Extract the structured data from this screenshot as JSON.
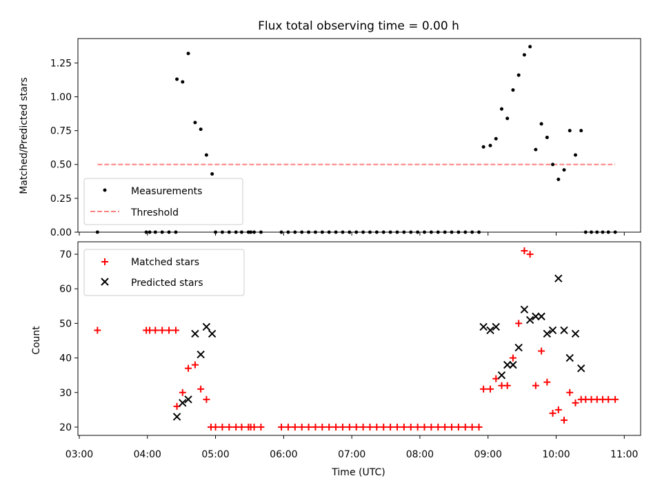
{
  "chart_data": [
    {
      "type": "scatter",
      "title": "Flux total observing time = 0.00 h",
      "xlabel": "",
      "ylabel": "Matched/Predicted stars",
      "ylim": [
        0,
        1.43
      ],
      "yticks": [
        "0.00",
        "0.25",
        "0.50",
        "0.75",
        "1.00",
        "1.25"
      ],
      "ytick_values": [
        0,
        0.25,
        0.5,
        0.75,
        1.0,
        1.25
      ],
      "xlim_hours": [
        2.98,
        11.24
      ],
      "legend": {
        "placement": "lower-left",
        "entries": [
          "Measurements",
          "Threshold"
        ]
      },
      "threshold": {
        "name": "Threshold",
        "value": 0.5,
        "x_start": "03:16",
        "x_end": "10:52",
        "color": "#ff7f7f"
      },
      "series": [
        {
          "name": "Measurements",
          "color": "#000000",
          "points": [
            [
              "03:16",
              0.0
            ],
            [
              "03:59",
              0.0
            ],
            [
              "04:02",
              0.0
            ],
            [
              "04:07",
              0.0
            ],
            [
              "04:13",
              0.0
            ],
            [
              "04:19",
              0.0
            ],
            [
              "04:25",
              0.0
            ],
            [
              "04:26",
              1.13
            ],
            [
              "04:31",
              1.11
            ],
            [
              "04:36",
              1.32
            ],
            [
              "04:42",
              0.81
            ],
            [
              "04:47",
              0.76
            ],
            [
              "04:52",
              0.57
            ],
            [
              "04:57",
              0.43
            ],
            [
              "05:00",
              0.0
            ],
            [
              "05:06",
              0.0
            ],
            [
              "05:12",
              0.0
            ],
            [
              "05:18",
              0.0
            ],
            [
              "05:23",
              0.0
            ],
            [
              "05:29",
              0.0
            ],
            [
              "05:31",
              0.0
            ],
            [
              "05:34",
              0.0
            ],
            [
              "05:40",
              0.0
            ],
            [
              "05:58",
              0.0
            ],
            [
              "06:04",
              0.0
            ],
            [
              "06:10",
              0.0
            ],
            [
              "06:16",
              0.0
            ],
            [
              "06:22",
              0.0
            ],
            [
              "06:28",
              0.0
            ],
            [
              "06:34",
              0.0
            ],
            [
              "06:40",
              0.0
            ],
            [
              "06:46",
              0.0
            ],
            [
              "06:52",
              0.0
            ],
            [
              "06:58",
              0.0
            ],
            [
              "07:04",
              0.0
            ],
            [
              "07:10",
              0.0
            ],
            [
              "07:16",
              0.0
            ],
            [
              "07:22",
              0.0
            ],
            [
              "07:28",
              0.0
            ],
            [
              "07:34",
              0.0
            ],
            [
              "07:40",
              0.0
            ],
            [
              "07:46",
              0.0
            ],
            [
              "07:52",
              0.0
            ],
            [
              "07:58",
              0.0
            ],
            [
              "08:04",
              0.0
            ],
            [
              "08:10",
              0.0
            ],
            [
              "08:16",
              0.0
            ],
            [
              "08:22",
              0.0
            ],
            [
              "08:28",
              0.0
            ],
            [
              "08:34",
              0.0
            ],
            [
              "08:40",
              0.0
            ],
            [
              "08:46",
              0.0
            ],
            [
              "08:52",
              0.0
            ],
            [
              "08:56",
              0.63
            ],
            [
              "09:02",
              0.64
            ],
            [
              "09:07",
              0.69
            ],
            [
              "09:12",
              0.91
            ],
            [
              "09:17",
              0.84
            ],
            [
              "09:22",
              1.05
            ],
            [
              "09:27",
              1.16
            ],
            [
              "09:32",
              1.31
            ],
            [
              "09:37",
              1.37
            ],
            [
              "09:42",
              0.61
            ],
            [
              "09:47",
              0.8
            ],
            [
              "09:52",
              0.7
            ],
            [
              "09:57",
              0.5
            ],
            [
              "10:02",
              0.39
            ],
            [
              "10:07",
              0.46
            ],
            [
              "10:12",
              0.75
            ],
            [
              "10:17",
              0.57
            ],
            [
              "10:22",
              0.75
            ],
            [
              "10:26",
              0.0
            ],
            [
              "10:31",
              0.0
            ],
            [
              "10:36",
              0.0
            ],
            [
              "10:41",
              0.0
            ],
            [
              "10:46",
              0.0
            ],
            [
              "10:52",
              0.0
            ]
          ]
        }
      ]
    },
    {
      "type": "scatter",
      "title": "",
      "xlabel": "Time (UTC)",
      "ylabel": "Count",
      "ylim": [
        17.6,
        73.6
      ],
      "yticks": [
        "20",
        "30",
        "40",
        "50",
        "60",
        "70"
      ],
      "ytick_values": [
        20,
        30,
        40,
        50,
        60,
        70
      ],
      "xticks": [
        "03:00",
        "04:00",
        "05:00",
        "06:00",
        "07:00",
        "08:00",
        "09:00",
        "10:00",
        "11:00"
      ],
      "xtick_hours": [
        3,
        4,
        5,
        6,
        7,
        8,
        9,
        10,
        11
      ],
      "xlim_hours": [
        2.98,
        11.24
      ],
      "legend": {
        "placement": "top-left",
        "entries": [
          "Matched stars",
          "Predicted stars"
        ]
      },
      "series": [
        {
          "name": "Matched stars",
          "marker": "plus",
          "color": "#ff0000",
          "points": [
            [
              "03:16",
              48
            ],
            [
              "03:59",
              48
            ],
            [
              "04:02",
              48
            ],
            [
              "04:07",
              48
            ],
            [
              "04:13",
              48
            ],
            [
              "04:19",
              48
            ],
            [
              "04:25",
              48
            ],
            [
              "04:26",
              26
            ],
            [
              "04:31",
              30
            ],
            [
              "04:36",
              37
            ],
            [
              "04:42",
              38
            ],
            [
              "04:47",
              31
            ],
            [
              "04:52",
              28
            ],
            [
              "04:56",
              20
            ],
            [
              "05:00",
              20
            ],
            [
              "05:06",
              20
            ],
            [
              "05:12",
              20
            ],
            [
              "05:18",
              20
            ],
            [
              "05:23",
              20
            ],
            [
              "05:29",
              20
            ],
            [
              "05:31",
              20
            ],
            [
              "05:34",
              20
            ],
            [
              "05:40",
              20
            ],
            [
              "05:58",
              20
            ],
            [
              "06:04",
              20
            ],
            [
              "06:10",
              20
            ],
            [
              "06:16",
              20
            ],
            [
              "06:22",
              20
            ],
            [
              "06:28",
              20
            ],
            [
              "06:34",
              20
            ],
            [
              "06:40",
              20
            ],
            [
              "06:46",
              20
            ],
            [
              "06:52",
              20
            ],
            [
              "06:58",
              20
            ],
            [
              "07:04",
              20
            ],
            [
              "07:10",
              20
            ],
            [
              "07:16",
              20
            ],
            [
              "07:22",
              20
            ],
            [
              "07:28",
              20
            ],
            [
              "07:34",
              20
            ],
            [
              "07:40",
              20
            ],
            [
              "07:46",
              20
            ],
            [
              "07:52",
              20
            ],
            [
              "07:58",
              20
            ],
            [
              "08:04",
              20
            ],
            [
              "08:10",
              20
            ],
            [
              "08:16",
              20
            ],
            [
              "08:22",
              20
            ],
            [
              "08:28",
              20
            ],
            [
              "08:34",
              20
            ],
            [
              "08:40",
              20
            ],
            [
              "08:46",
              20
            ],
            [
              "08:52",
              20
            ],
            [
              "08:56",
              31
            ],
            [
              "09:02",
              31
            ],
            [
              "09:07",
              34
            ],
            [
              "09:12",
              32
            ],
            [
              "09:17",
              32
            ],
            [
              "09:22",
              40
            ],
            [
              "09:27",
              50
            ],
            [
              "09:32",
              71
            ],
            [
              "09:37",
              70
            ],
            [
              "09:42",
              32
            ],
            [
              "09:47",
              42
            ],
            [
              "09:52",
              33
            ],
            [
              "09:57",
              24
            ],
            [
              "10:02",
              25
            ],
            [
              "10:07",
              22
            ],
            [
              "10:12",
              30
            ],
            [
              "10:17",
              27
            ],
            [
              "10:22",
              28
            ],
            [
              "10:26",
              28
            ],
            [
              "10:31",
              28
            ],
            [
              "10:36",
              28
            ],
            [
              "10:41",
              28
            ],
            [
              "10:46",
              28
            ],
            [
              "10:52",
              28
            ]
          ]
        },
        {
          "name": "Predicted stars",
          "marker": "cross",
          "color": "#000000",
          "points": [
            [
              "04:26",
              23
            ],
            [
              "04:31",
              27
            ],
            [
              "04:36",
              28
            ],
            [
              "04:42",
              47
            ],
            [
              "04:47",
              41
            ],
            [
              "04:52",
              49
            ],
            [
              "04:57",
              47
            ],
            [
              "08:56",
              49
            ],
            [
              "09:02",
              48
            ],
            [
              "09:07",
              49
            ],
            [
              "09:12",
              35
            ],
            [
              "09:17",
              38
            ],
            [
              "09:22",
              38
            ],
            [
              "09:27",
              43
            ],
            [
              "09:32",
              54
            ],
            [
              "09:37",
              51
            ],
            [
              "09:42",
              52
            ],
            [
              "09:47",
              52
            ],
            [
              "09:52",
              47
            ],
            [
              "09:57",
              48
            ],
            [
              "10:02",
              63
            ],
            [
              "10:07",
              48
            ],
            [
              "10:12",
              40
            ],
            [
              "10:17",
              47
            ],
            [
              "10:22",
              37
            ]
          ]
        }
      ]
    }
  ]
}
